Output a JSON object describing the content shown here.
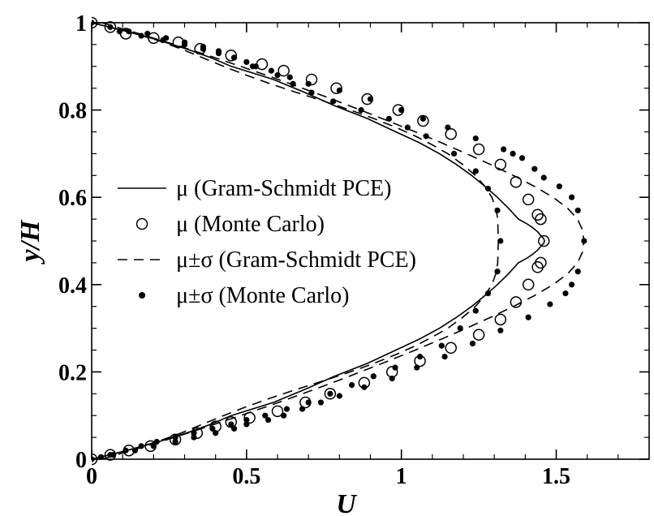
{
  "chart_data": {
    "type": "line",
    "xlabel": "U",
    "ylabel": "y/H",
    "xlim": [
      0,
      1.8
    ],
    "ylim": [
      0,
      1
    ],
    "x_ticks": [
      0,
      0.5,
      1,
      1.5
    ],
    "x_tick_labels": [
      "0",
      "0.5",
      "1",
      "1.5"
    ],
    "y_ticks": [
      0,
      0.2,
      0.4,
      0.6,
      0.8,
      1
    ],
    "y_tick_labels": [
      "0",
      "0.2",
      "0.4",
      "0.6",
      "0.8",
      "1"
    ],
    "grid": false,
    "legend_position": "center-left",
    "legend": [
      {
        "label": "μ (Gram-Schmidt PCE)",
        "style": "solid-line"
      },
      {
        "label": "μ (Monte Carlo)",
        "style": "open-circle"
      },
      {
        "label": "μ±σ (Gram-Schmidt PCE)",
        "style": "dashed-line"
      },
      {
        "label": "μ±σ (Monte Carlo)",
        "style": "filled-dot"
      }
    ],
    "series": [
      {
        "name": "μ (Gram-Schmidt PCE)",
        "style": "solid-line",
        "x": [
          0,
          0.114,
          0.216,
          0.306,
          0.384,
          0.451,
          0.586,
          0.689,
          0.784,
          0.892,
          0.982,
          1.058,
          1.123,
          1.178,
          1.227,
          1.27,
          1.31,
          1.346,
          1.378,
          1.404,
          1.425,
          1.441,
          1.453,
          1.46,
          1.462,
          1.46,
          1.453,
          1.441,
          1.425,
          1.404,
          1.378,
          1.346,
          1.31,
          1.27,
          1.227,
          1.178,
          1.123,
          1.058,
          0.982,
          0.892,
          0.784,
          0.689,
          0.586,
          0.451,
          0.384,
          0.306,
          0.216,
          0.114,
          0
        ],
        "y": [
          0,
          0.02,
          0.04,
          0.06,
          0.08,
          0.1,
          0.13,
          0.16,
          0.19,
          0.22,
          0.25,
          0.275,
          0.3,
          0.325,
          0.35,
          0.375,
          0.4,
          0.425,
          0.45,
          0.46,
          0.47,
          0.48,
          0.49,
          0.495,
          0.5,
          0.505,
          0.51,
          0.52,
          0.53,
          0.54,
          0.55,
          0.575,
          0.6,
          0.625,
          0.65,
          0.675,
          0.7,
          0.725,
          0.75,
          0.78,
          0.81,
          0.84,
          0.87,
          0.9,
          0.92,
          0.94,
          0.96,
          0.98,
          1.0
        ]
      },
      {
        "name": "μ (Monte Carlo)",
        "style": "open-circle",
        "x": [
          0,
          0.06,
          0.12,
          0.19,
          0.27,
          0.34,
          0.4,
          0.45,
          0.51,
          0.6,
          0.69,
          0.77,
          0.88,
          0.97,
          1.06,
          1.16,
          1.25,
          1.32,
          1.37,
          1.41,
          1.44,
          1.45,
          1.46,
          1.45,
          1.44,
          1.41,
          1.37,
          1.32,
          1.25,
          1.16,
          1.07,
          0.99,
          0.89,
          0.79,
          0.71,
          0.62,
          0.55,
          0.45,
          0.35,
          0.28,
          0.2,
          0.11,
          0.06,
          0
        ],
        "y": [
          0,
          0.01,
          0.02,
          0.03,
          0.045,
          0.06,
          0.075,
          0.085,
          0.095,
          0.11,
          0.13,
          0.15,
          0.175,
          0.2,
          0.225,
          0.255,
          0.285,
          0.32,
          0.36,
          0.4,
          0.44,
          0.45,
          0.5,
          0.55,
          0.56,
          0.595,
          0.635,
          0.675,
          0.71,
          0.745,
          0.775,
          0.8,
          0.825,
          0.85,
          0.87,
          0.89,
          0.905,
          0.925,
          0.94,
          0.955,
          0.965,
          0.975,
          0.99,
          1.0
        ]
      },
      {
        "name": "μ+σ (Gram-Schmidt PCE)",
        "style": "dashed-line",
        "x": [
          0.032,
          0.153,
          0.267,
          0.376,
          0.481,
          0.583,
          0.681,
          0.776,
          0.868,
          0.958,
          1.045,
          1.129,
          1.21,
          1.288,
          1.362,
          1.43,
          1.49,
          1.537,
          1.569,
          1.585,
          1.589,
          1.585,
          1.569,
          1.537,
          1.49,
          1.43,
          1.362,
          1.288,
          1.21,
          1.129,
          1.045,
          0.958,
          0.868,
          0.776,
          0.681,
          0.583,
          0.481,
          0.376,
          0.267,
          0.153,
          0.032
        ],
        "y": [
          1.0,
          0.975,
          0.95,
          0.925,
          0.9,
          0.875,
          0.85,
          0.825,
          0.8,
          0.775,
          0.75,
          0.725,
          0.7,
          0.675,
          0.65,
          0.625,
          0.6,
          0.575,
          0.55,
          0.525,
          0.5,
          0.475,
          0.45,
          0.425,
          0.4,
          0.375,
          0.35,
          0.325,
          0.3,
          0.275,
          0.25,
          0.225,
          0.2,
          0.175,
          0.15,
          0.125,
          0.1,
          0.075,
          0.05,
          0.025,
          0.0
        ]
      },
      {
        "name": "μ−σ (Gram-Schmidt PCE)",
        "style": "dashed-line",
        "x": [
          0,
          0.115,
          0.211,
          0.289,
          0.357,
          0.426,
          0.499,
          0.577,
          0.662,
          0.75,
          0.835,
          0.913,
          0.983,
          1.046,
          1.1,
          1.15,
          1.198,
          1.239,
          1.27,
          1.292,
          1.305,
          1.311,
          1.313,
          1.311,
          1.305,
          1.292,
          1.27,
          1.239,
          1.198,
          1.15,
          1.1,
          1.046,
          0.983,
          0.913,
          0.835,
          0.75,
          0.662,
          0.577,
          0.499,
          0.426,
          0.357,
          0.289,
          0.211,
          0.115,
          0
        ],
        "y": [
          1.0,
          0.98,
          0.96,
          0.94,
          0.92,
          0.9,
          0.88,
          0.86,
          0.84,
          0.82,
          0.8,
          0.78,
          0.76,
          0.74,
          0.72,
          0.7,
          0.675,
          0.65,
          0.625,
          0.6,
          0.575,
          0.55,
          0.5,
          0.45,
          0.425,
          0.4,
          0.375,
          0.35,
          0.325,
          0.3,
          0.28,
          0.26,
          0.24,
          0.22,
          0.2,
          0.18,
          0.16,
          0.14,
          0.12,
          0.1,
          0.08,
          0.06,
          0.04,
          0.02,
          0.0
        ]
      },
      {
        "name": "μ±σ (Monte Carlo)",
        "style": "filled-dot",
        "x": [
          0,
          0.06,
          0.12,
          0.18,
          0.24,
          0.3,
          0.36,
          0.41,
          0.46,
          0.5,
          0.52,
          0.58,
          0.64,
          0.7,
          0.8,
          0.9,
          1.0,
          1.07,
          1.15,
          1.24,
          1.33,
          1.36,
          1.39,
          1.43,
          1.46,
          1.51,
          1.55,
          1.57,
          1.59,
          1.57,
          1.55,
          1.53,
          1.48,
          1.41,
          1.32,
          1.23,
          1.14,
          1.05,
          0.97,
          0.88,
          0.8,
          0.74,
          0.68,
          0.62,
          0.57,
          0.5,
          0.46,
          0.4,
          0.33,
          0.27,
          0.2,
          0.14,
          0.06,
          0,
          0.03,
          0.07,
          0.11,
          0.16,
          0.21,
          0.27,
          0.33,
          0.39,
          0.45,
          0.5,
          0.56,
          0.63,
          0.7,
          0.77,
          0.84,
          0.91,
          0.98,
          1.06,
          1.13,
          1.19,
          1.24,
          1.28,
          1.31,
          1.32,
          1.31,
          1.28,
          1.24,
          1.17,
          1.08,
          1.02,
          0.96,
          0.87,
          0.78,
          0.71,
          0.65,
          0.6,
          0.53,
          0.46,
          0.41,
          0.36,
          0.3,
          0.23,
          0.16,
          0.09
        ],
        "y": [
          1.0,
          0.99,
          0.98,
          0.975,
          0.965,
          0.955,
          0.945,
          0.935,
          0.92,
          0.91,
          0.9,
          0.89,
          0.875,
          0.86,
          0.845,
          0.825,
          0.8,
          0.78,
          0.76,
          0.735,
          0.71,
          0.7,
          0.69,
          0.665,
          0.645,
          0.625,
          0.6,
          0.57,
          0.5,
          0.43,
          0.4,
          0.38,
          0.355,
          0.325,
          0.295,
          0.265,
          0.235,
          0.21,
          0.185,
          0.165,
          0.145,
          0.13,
          0.115,
          0.1,
          0.09,
          0.08,
          0.07,
          0.06,
          0.05,
          0.04,
          0.03,
          0.02,
          0.01,
          0.0,
          0.005,
          0.01,
          0.02,
          0.03,
          0.04,
          0.05,
          0.06,
          0.07,
          0.08,
          0.09,
          0.1,
          0.115,
          0.13,
          0.15,
          0.17,
          0.19,
          0.21,
          0.235,
          0.26,
          0.3,
          0.34,
          0.38,
          0.43,
          0.5,
          0.57,
          0.62,
          0.66,
          0.7,
          0.74,
          0.76,
          0.78,
          0.8,
          0.82,
          0.84,
          0.86,
          0.88,
          0.9,
          0.92,
          0.93,
          0.94,
          0.95,
          0.96,
          0.97,
          0.98
        ]
      }
    ]
  }
}
